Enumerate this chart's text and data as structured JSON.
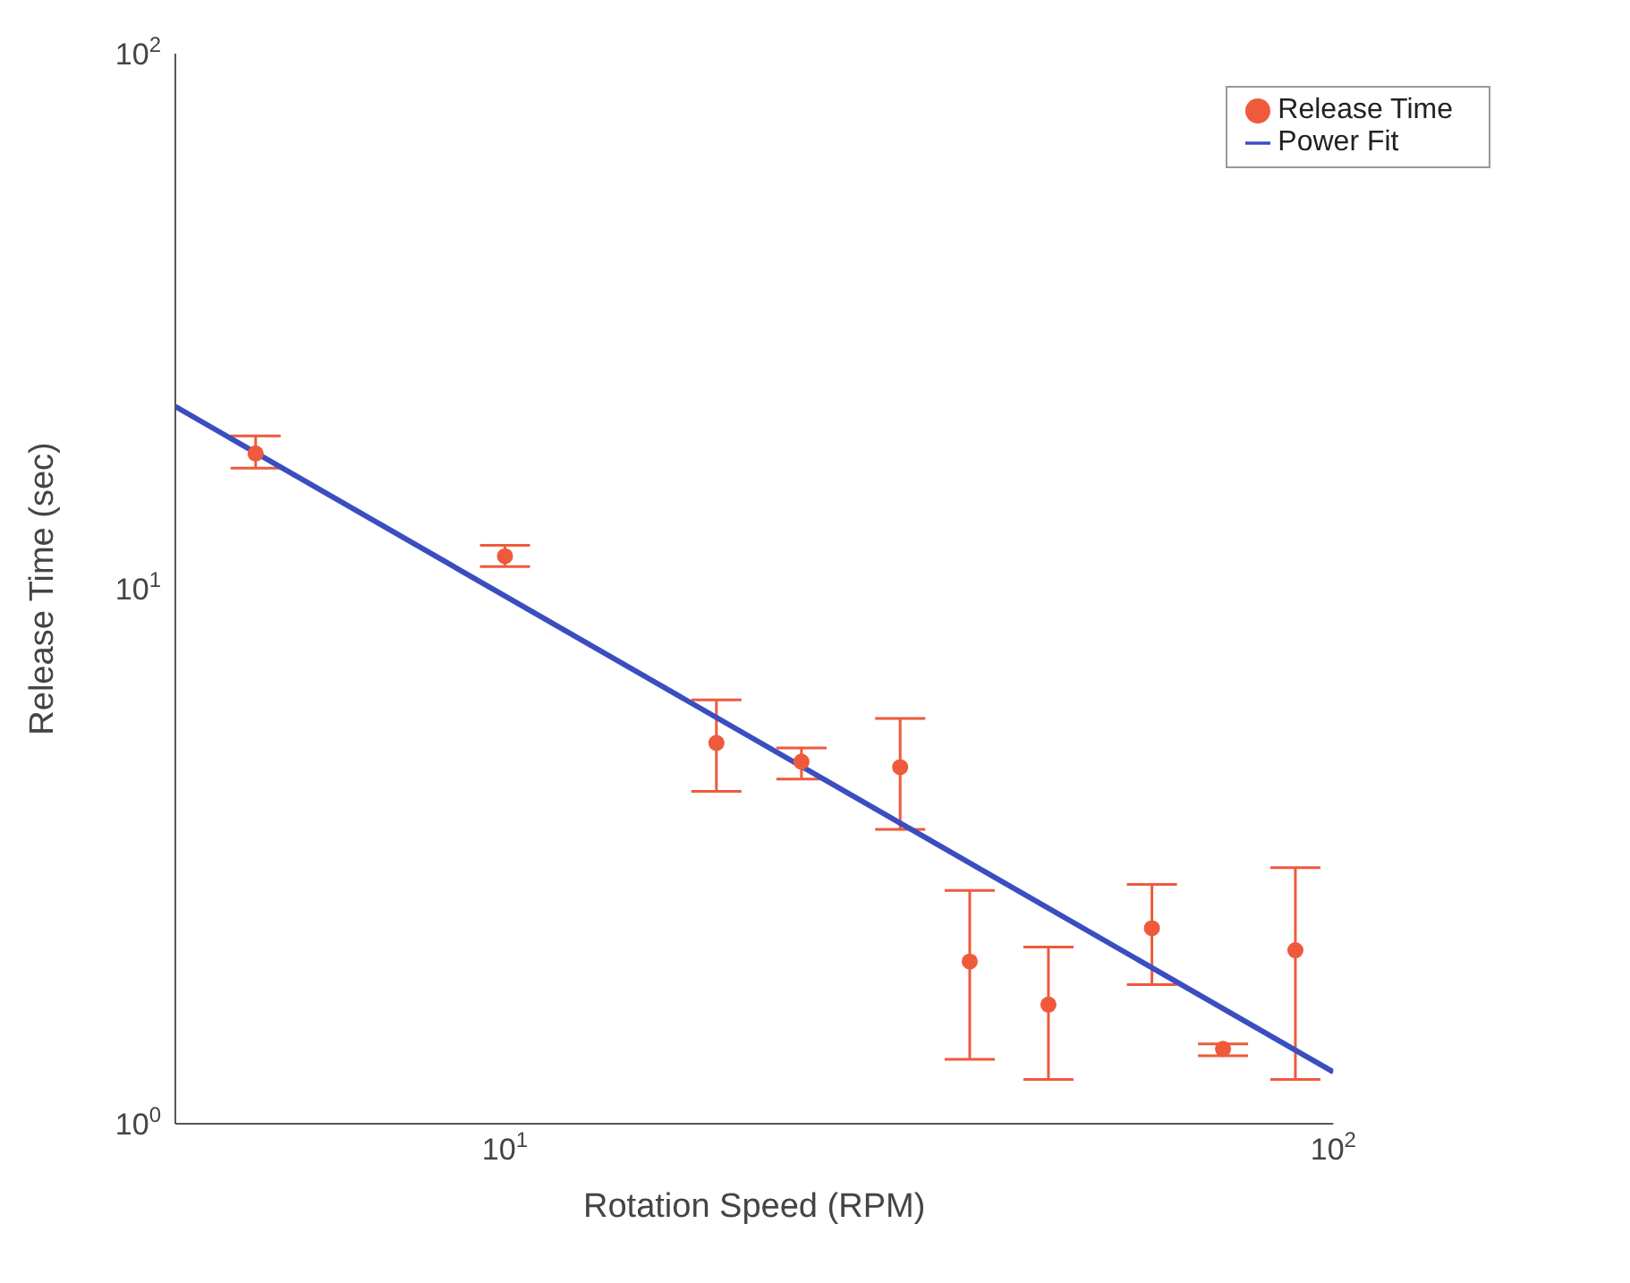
{
  "chart_data": {
    "type": "scatter",
    "xlabel": "Rotation Speed (RPM)",
    "ylabel": "Release Time (sec)",
    "log": "xy",
    "xlim": [
      4,
      100
    ],
    "ylim": [
      1,
      100
    ],
    "xticks": [
      {
        "value": 10,
        "label": "10$^{1}$"
      },
      {
        "value": 100,
        "label": "10$^{2}$"
      }
    ],
    "yticks": [
      {
        "value": 1,
        "label": "10$^{0}$"
      },
      {
        "value": 10,
        "label": "10$^{1}$"
      },
      {
        "value": 100,
        "label": "10$^{2}$"
      }
    ],
    "legend": "top right",
    "marker": "circle",
    "series": [
      {
        "name": "Release Time",
        "color": "#ef5a3c",
        "x": [
          5,
          10,
          18,
          22.8,
          30,
          36.4,
          45.3,
          60.4,
          73.6,
          90
        ],
        "values": [
          17.9,
          11.5,
          5.15,
          4.75,
          4.64,
          2.01,
          1.67,
          2.32,
          1.38,
          2.11
        ],
        "errors": [
          [
            16.8,
            19.3
          ],
          [
            11.0,
            12.05
          ],
          [
            4.18,
            6.2
          ],
          [
            4.41,
            5.04
          ],
          [
            3.55,
            5.72
          ],
          [
            1.32,
            2.73
          ],
          [
            1.21,
            2.14
          ],
          [
            1.82,
            2.8
          ],
          [
            1.34,
            1.41
          ],
          [
            1.21,
            3.01
          ]
        ]
      },
      {
        "name": "Power Fit",
        "type": "line",
        "color": "#3a4ec0",
        "x": [
          4,
          100
        ],
        "values": [
          21.9,
          1.25
        ],
        "marker": "none"
      }
    ]
  }
}
